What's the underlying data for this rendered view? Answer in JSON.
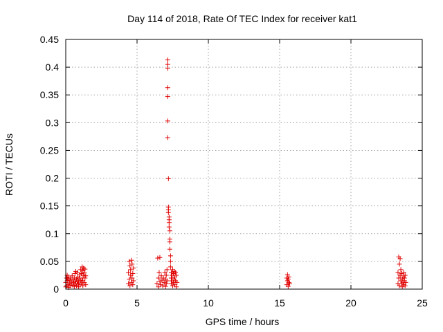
{
  "chart_data": {
    "type": "scatter",
    "title": "Day 114 of 2018, Rate Of TEC Index for receiver kat1",
    "xlabel": "GPS time / hours",
    "ylabel": "ROTI / TECUs",
    "xlim": [
      0,
      25
    ],
    "ylim": [
      0,
      0.45
    ],
    "xticks": [
      0,
      5,
      10,
      15,
      20,
      25
    ],
    "yticks": [
      0,
      0.05,
      0.1,
      0.15,
      0.2,
      0.25,
      0.3,
      0.35,
      0.4,
      0.45
    ],
    "grid": true,
    "marker": "+",
    "color": "#e00000",
    "series": [
      {
        "name": "ROTI",
        "points": [
          [
            0.0,
            0.004
          ],
          [
            0.0,
            0.012
          ],
          [
            0.05,
            0.02
          ],
          [
            0.05,
            0.006
          ],
          [
            0.1,
            0.015
          ],
          [
            0.1,
            0.025
          ],
          [
            0.15,
            0.008
          ],
          [
            0.15,
            0.018
          ],
          [
            0.2,
            0.003
          ],
          [
            0.2,
            0.022
          ],
          [
            0.25,
            0.011
          ],
          [
            0.3,
            0.016
          ],
          [
            0.3,
            0.006
          ],
          [
            0.35,
            0.02
          ],
          [
            0.4,
            0.009
          ],
          [
            0.4,
            0.013
          ],
          [
            0.45,
            0.024
          ],
          [
            0.5,
            0.007
          ],
          [
            0.5,
            0.017
          ],
          [
            0.55,
            0.012
          ],
          [
            0.6,
            0.02
          ],
          [
            0.6,
            0.005
          ],
          [
            0.65,
            0.028
          ],
          [
            0.65,
            0.014
          ],
          [
            0.7,
            0.01
          ],
          [
            0.7,
            0.032
          ],
          [
            0.75,
            0.018
          ],
          [
            0.75,
            0.006
          ],
          [
            0.8,
            0.03
          ],
          [
            0.8,
            0.015
          ],
          [
            0.85,
            0.022
          ],
          [
            0.85,
            0.009
          ],
          [
            0.9,
            0.013
          ],
          [
            0.9,
            0.004
          ],
          [
            0.95,
            0.02
          ],
          [
            1.0,
            0.008
          ],
          [
            1.0,
            0.026
          ],
          [
            1.05,
            0.016
          ],
          [
            1.05,
            0.035
          ],
          [
            1.1,
            0.011
          ],
          [
            1.1,
            0.028
          ],
          [
            1.15,
            0.04
          ],
          [
            1.15,
            0.02
          ],
          [
            1.2,
            0.006
          ],
          [
            1.2,
            0.033
          ],
          [
            1.2,
            0.015
          ],
          [
            1.25,
            0.025
          ],
          [
            1.25,
            0.038
          ],
          [
            1.3,
            0.012
          ],
          [
            1.3,
            0.03
          ],
          [
            1.35,
            0.02
          ],
          [
            1.35,
            0.036
          ],
          [
            1.4,
            0.008
          ],
          [
            1.4,
            0.024
          ],
          [
            4.4,
            0.01
          ],
          [
            4.4,
            0.03
          ],
          [
            4.45,
            0.05
          ],
          [
            4.45,
            0.018
          ],
          [
            4.5,
            0.042
          ],
          [
            4.5,
            0.006
          ],
          [
            4.55,
            0.025
          ],
          [
            4.55,
            0.035
          ],
          [
            4.6,
            0.012
          ],
          [
            4.6,
            0.052
          ],
          [
            4.65,
            0.02
          ],
          [
            4.65,
            0.045
          ],
          [
            4.7,
            0.028
          ],
          [
            4.7,
            0.008
          ],
          [
            4.75,
            0.015
          ],
          [
            4.75,
            0.038
          ],
          [
            6.4,
            0.01
          ],
          [
            6.45,
            0.056
          ],
          [
            6.5,
            0.02
          ],
          [
            6.5,
            0.004
          ],
          [
            6.55,
            0.03
          ],
          [
            6.6,
            0.014
          ],
          [
            6.6,
            0.057
          ],
          [
            6.65,
            0.008
          ],
          [
            6.7,
            0.024
          ],
          [
            6.75,
            0.016
          ],
          [
            6.8,
            0.006
          ],
          [
            6.85,
            0.02
          ],
          [
            6.9,
            0.012
          ],
          [
            6.95,
            0.03
          ],
          [
            7.0,
            0.018
          ],
          [
            7.0,
            0.005
          ],
          [
            7.05,
            0.025
          ],
          [
            7.05,
            0.01
          ],
          [
            7.1,
            0.035
          ],
          [
            7.1,
            0.015
          ],
          [
            7.15,
            0.413
          ],
          [
            7.15,
            0.405
          ],
          [
            7.15,
            0.398
          ],
          [
            7.15,
            0.363
          ],
          [
            7.15,
            0.347
          ],
          [
            7.15,
            0.303
          ],
          [
            7.15,
            0.273
          ],
          [
            7.2,
            0.199
          ],
          [
            7.2,
            0.148
          ],
          [
            7.2,
            0.143
          ],
          [
            7.2,
            0.138
          ],
          [
            7.25,
            0.13
          ],
          [
            7.25,
            0.125
          ],
          [
            7.25,
            0.12
          ],
          [
            7.25,
            0.112
          ],
          [
            7.3,
            0.105
          ],
          [
            7.3,
            0.09
          ],
          [
            7.3,
            0.085
          ],
          [
            7.3,
            0.072
          ],
          [
            7.35,
            0.06
          ],
          [
            7.35,
            0.05
          ],
          [
            7.35,
            0.04
          ],
          [
            7.4,
            0.03
          ],
          [
            7.4,
            0.02
          ],
          [
            7.4,
            0.01
          ],
          [
            7.45,
            0.025
          ],
          [
            7.45,
            0.015
          ],
          [
            7.5,
            0.035
          ],
          [
            7.5,
            0.006
          ],
          [
            7.55,
            0.028
          ],
          [
            7.55,
            0.012
          ],
          [
            7.6,
            0.032
          ],
          [
            7.6,
            0.018
          ],
          [
            7.65,
            0.022
          ],
          [
            7.65,
            0.008
          ],
          [
            7.7,
            0.03
          ],
          [
            7.7,
            0.015
          ],
          [
            7.75,
            0.025
          ],
          [
            7.75,
            0.004
          ],
          [
            7.8,
            0.012
          ],
          [
            15.5,
            0.008
          ],
          [
            15.5,
            0.02
          ],
          [
            15.55,
            0.015
          ],
          [
            15.55,
            0.026
          ],
          [
            15.6,
            0.005
          ],
          [
            15.6,
            0.018
          ],
          [
            15.65,
            0.012
          ],
          [
            15.65,
            0.022
          ],
          [
            15.7,
            0.01
          ],
          [
            23.3,
            0.01
          ],
          [
            23.3,
            0.03
          ],
          [
            23.35,
            0.058
          ],
          [
            23.35,
            0.02
          ],
          [
            23.4,
            0.045
          ],
          [
            23.4,
            0.006
          ],
          [
            23.45,
            0.055
          ],
          [
            23.45,
            0.025
          ],
          [
            23.5,
            0.015
          ],
          [
            23.5,
            0.035
          ],
          [
            23.55,
            0.01
          ],
          [
            23.55,
            0.028
          ],
          [
            23.6,
            0.018
          ],
          [
            23.6,
            0.004
          ],
          [
            23.65,
            0.022
          ],
          [
            23.65,
            0.012
          ],
          [
            23.7,
            0.03
          ],
          [
            23.7,
            0.008
          ],
          [
            23.75,
            0.02
          ],
          [
            23.75,
            0.015
          ],
          [
            23.8,
            0.025
          ],
          [
            23.8,
            0.006
          ],
          [
            23.85,
            0.012
          ]
        ]
      }
    ]
  }
}
